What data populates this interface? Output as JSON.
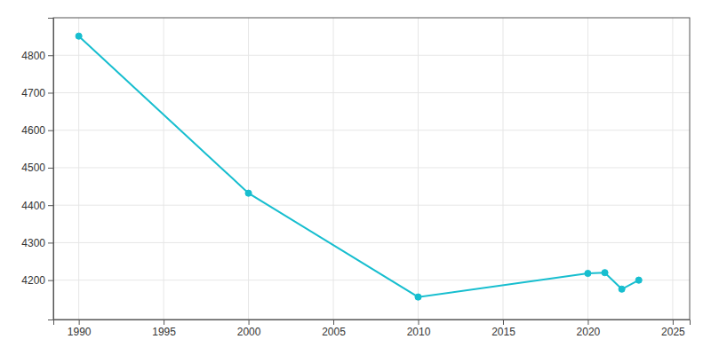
{
  "chart_data": {
    "type": "line",
    "x": [
      1990,
      2000,
      2010,
      2020,
      2021,
      2022,
      2023
    ],
    "values": [
      4851,
      4432,
      4155,
      4218,
      4220,
      4176,
      4200
    ],
    "color": "#17BECF",
    "marker": "circle",
    "xlim": [
      1988.5,
      2026
    ],
    "ylim": [
      4095,
      4900
    ],
    "xticks": [
      1990,
      1995,
      2000,
      2005,
      2010,
      2015,
      2020,
      2025
    ],
    "yticks": [
      4200,
      4300,
      4400,
      4500,
      4600,
      4700,
      4800
    ],
    "grid": true
  }
}
